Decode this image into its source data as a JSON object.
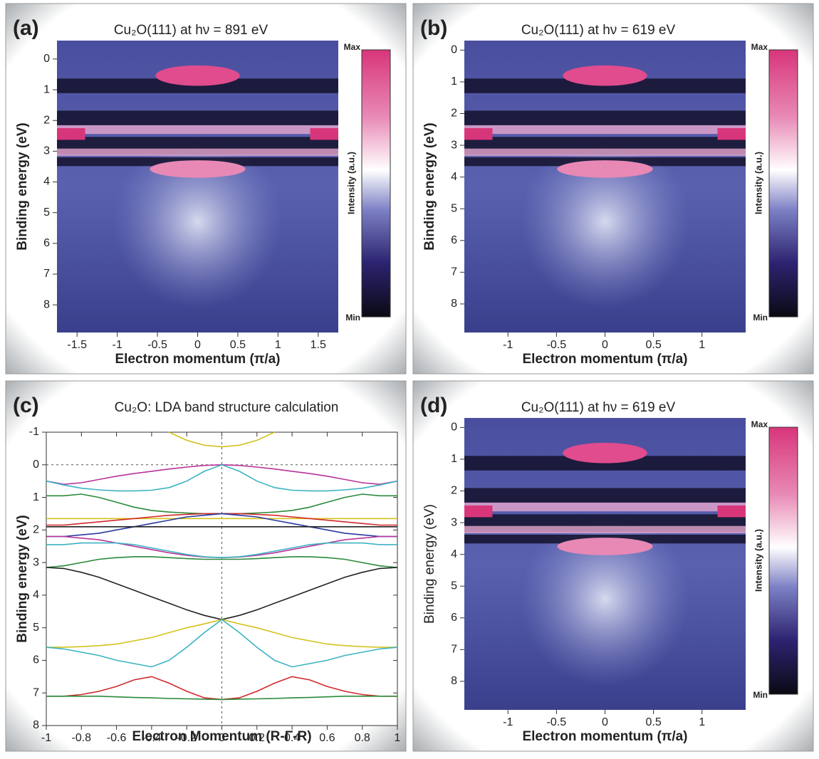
{
  "chart_data": [
    {
      "type": "heatmap",
      "panel_label": "(a)",
      "title": "Cu₂O(111) at hν = 891 eV",
      "xlabel": "Electron momentum (π/a)",
      "ylabel": "Binding energy (eV)",
      "xlim": [
        -1.75,
        1.75
      ],
      "xticks": [
        -1.5,
        -1,
        -0.5,
        0,
        0.5,
        1,
        1.5
      ],
      "ylim": [
        -0.6,
        8.9
      ],
      "yticks": [
        0,
        1,
        2,
        3,
        4,
        5,
        6,
        7,
        8
      ],
      "colorbar": {
        "label": "Intensity (a.u.)",
        "max_label": "Max",
        "min_label": "Min"
      }
    },
    {
      "type": "heatmap",
      "panel_label": "(b)",
      "title": "Cu₂O(111) at hν = 619 eV",
      "xlabel": "Electron momentum (π/a)",
      "ylabel": "Binding energy (eV)",
      "xlim": [
        -1.45,
        1.45
      ],
      "xticks": [
        -1,
        -0.5,
        0,
        0.5,
        1
      ],
      "ylim": [
        -0.3,
        8.9
      ],
      "yticks": [
        0,
        1,
        2,
        3,
        4,
        5,
        6,
        7,
        8
      ],
      "colorbar": {
        "label": "Intensity (a.u.)",
        "max_label": "Max",
        "min_label": "Min"
      }
    },
    {
      "type": "line",
      "panel_label": "(c)",
      "title": "Cu₂O: LDA band structure calculation",
      "xlabel": "Electron Momentum (R-Γ-R)",
      "ylabel": "Binding energy (eV)",
      "xlim": [
        -1,
        1
      ],
      "xticks": [
        -1,
        -0.8,
        -0.6,
        -0.4,
        -0.2,
        0,
        0.2,
        0.4,
        0.6,
        0.8,
        1
      ],
      "ylim": [
        -1,
        8
      ],
      "yticks": [
        -1,
        0,
        1,
        2,
        3,
        4,
        5,
        6,
        7,
        8
      ],
      "hline": 0,
      "vline": 0,
      "x": [
        -1,
        -0.9,
        -0.8,
        -0.7,
        -0.6,
        -0.5,
        -0.4,
        -0.3,
        -0.2,
        -0.1,
        0,
        0.1,
        0.2,
        0.3,
        0.4,
        0.5,
        0.6,
        0.7,
        0.8,
        0.9,
        1
      ],
      "series": [
        {
          "color": "#d4c21c",
          "values": [
            null,
            null,
            null,
            null,
            null,
            null,
            null,
            -1.0,
            -0.75,
            -0.6,
            -0.55,
            -0.6,
            -0.75,
            -1.0,
            null,
            null,
            null,
            null,
            null,
            null,
            null
          ]
        },
        {
          "color": "#b8339a",
          "values": [
            0.5,
            0.6,
            0.55,
            0.45,
            0.35,
            0.27,
            0.2,
            0.13,
            0.07,
            0.02,
            0,
            0.02,
            0.07,
            0.13,
            0.2,
            0.27,
            0.35,
            0.45,
            0.55,
            0.6,
            0.5
          ]
        },
        {
          "color": "#3bb3c3",
          "values": [
            0.5,
            0.62,
            0.72,
            0.77,
            0.8,
            0.8,
            0.78,
            0.7,
            0.5,
            0.2,
            0,
            0.2,
            0.5,
            0.7,
            0.78,
            0.8,
            0.8,
            0.77,
            0.72,
            0.62,
            0.5
          ]
        },
        {
          "color": "#2a8a3a",
          "values": [
            0.95,
            0.95,
            0.9,
            1.0,
            1.15,
            1.3,
            1.4,
            1.45,
            1.48,
            1.5,
            1.5,
            1.5,
            1.48,
            1.45,
            1.4,
            1.3,
            1.15,
            1.0,
            0.9,
            0.95,
            0.95
          ]
        },
        {
          "color": "#d4c21c",
          "values": [
            1.65,
            1.65,
            1.65,
            1.65,
            1.65,
            1.65,
            1.65,
            1.65,
            1.65,
            1.65,
            1.65,
            1.65,
            1.65,
            1.65,
            1.65,
            1.65,
            1.65,
            1.65,
            1.65,
            1.65,
            1.65
          ]
        },
        {
          "color": "#d0282c",
          "values": [
            1.85,
            1.85,
            1.8,
            1.75,
            1.7,
            1.65,
            1.6,
            1.55,
            1.52,
            1.5,
            1.5,
            1.5,
            1.52,
            1.55,
            1.6,
            1.65,
            1.7,
            1.75,
            1.8,
            1.85,
            1.85
          ]
        },
        {
          "color": "#2a3aa0",
          "values": [
            2.2,
            2.2,
            2.15,
            2.1,
            2.0,
            1.9,
            1.8,
            1.7,
            1.6,
            1.55,
            1.5,
            1.55,
            1.6,
            1.7,
            1.8,
            1.9,
            2.0,
            2.1,
            2.15,
            2.2,
            2.2
          ]
        },
        {
          "color": "#222222",
          "values": [
            1.9,
            1.9,
            1.9,
            1.9,
            1.9,
            1.9,
            1.9,
            1.9,
            1.9,
            1.9,
            1.9,
            1.9,
            1.9,
            1.9,
            1.9,
            1.9,
            1.9,
            1.9,
            1.9,
            1.9,
            1.9
          ]
        },
        {
          "color": "#b8339a",
          "values": [
            2.2,
            2.2,
            2.25,
            2.3,
            2.4,
            2.5,
            2.6,
            2.7,
            2.78,
            2.83,
            2.85,
            2.83,
            2.78,
            2.7,
            2.6,
            2.5,
            2.4,
            2.3,
            2.25,
            2.2,
            2.2
          ]
        },
        {
          "color": "#3bb3c3",
          "values": [
            2.45,
            2.45,
            2.4,
            2.4,
            2.4,
            2.45,
            2.55,
            2.65,
            2.75,
            2.82,
            2.85,
            2.82,
            2.75,
            2.65,
            2.55,
            2.45,
            2.4,
            2.4,
            2.4,
            2.45,
            2.45
          ]
        },
        {
          "color": "#2a8a3a",
          "values": [
            3.15,
            3.1,
            3.0,
            2.9,
            2.85,
            2.82,
            2.82,
            2.85,
            2.88,
            2.9,
            2.9,
            2.9,
            2.88,
            2.85,
            2.82,
            2.82,
            2.85,
            2.9,
            3.0,
            3.1,
            3.15
          ]
        },
        {
          "color": "#222222",
          "values": [
            3.15,
            3.18,
            3.3,
            3.45,
            3.65,
            3.85,
            4.05,
            4.25,
            4.45,
            4.62,
            4.75,
            4.62,
            4.45,
            4.25,
            4.05,
            3.85,
            3.65,
            3.45,
            3.3,
            3.18,
            3.15
          ]
        },
        {
          "color": "#d4c21c",
          "values": [
            5.6,
            5.6,
            5.58,
            5.55,
            5.5,
            5.4,
            5.3,
            5.15,
            5.0,
            4.88,
            4.75,
            4.88,
            5.0,
            5.15,
            5.3,
            5.4,
            5.5,
            5.55,
            5.58,
            5.6,
            5.6
          ]
        },
        {
          "color": "#3bb3c3",
          "values": [
            5.6,
            5.65,
            5.75,
            5.85,
            6.0,
            6.1,
            6.2,
            6.0,
            5.6,
            5.15,
            4.75,
            5.15,
            5.6,
            6.0,
            6.2,
            6.1,
            6.0,
            5.85,
            5.75,
            5.65,
            5.6
          ]
        },
        {
          "color": "#d0282c",
          "values": [
            7.1,
            7.1,
            7.05,
            6.95,
            6.8,
            6.6,
            6.5,
            6.7,
            6.95,
            7.15,
            7.2,
            7.15,
            6.95,
            6.7,
            6.5,
            6.6,
            6.8,
            6.95,
            7.05,
            7.1,
            7.1
          ]
        },
        {
          "color": "#2a8a3a",
          "values": [
            7.1,
            7.1,
            7.1,
            7.1,
            7.12,
            7.14,
            7.15,
            7.17,
            7.18,
            7.19,
            7.2,
            7.19,
            7.18,
            7.17,
            7.15,
            7.14,
            7.12,
            7.1,
            7.1,
            7.1,
            7.1
          ]
        }
      ]
    },
    {
      "type": "heatmap",
      "panel_label": "(d)",
      "title": "Cu₂O(111) at hν = 619 eV",
      "xlabel": "Electron momentum (π/a)",
      "ylabel": "Binding energy (eV)",
      "xlim": [
        -1.45,
        1.45
      ],
      "xticks": [
        -1,
        -0.5,
        0,
        0.5,
        1
      ],
      "ylim": [
        -0.3,
        8.9
      ],
      "yticks": [
        0,
        1,
        2,
        3,
        4,
        5,
        6,
        7,
        8
      ],
      "colorbar": {
        "label": "Intensity (a.u.)",
        "max_label": "Max",
        "min_label": "Min"
      }
    }
  ]
}
